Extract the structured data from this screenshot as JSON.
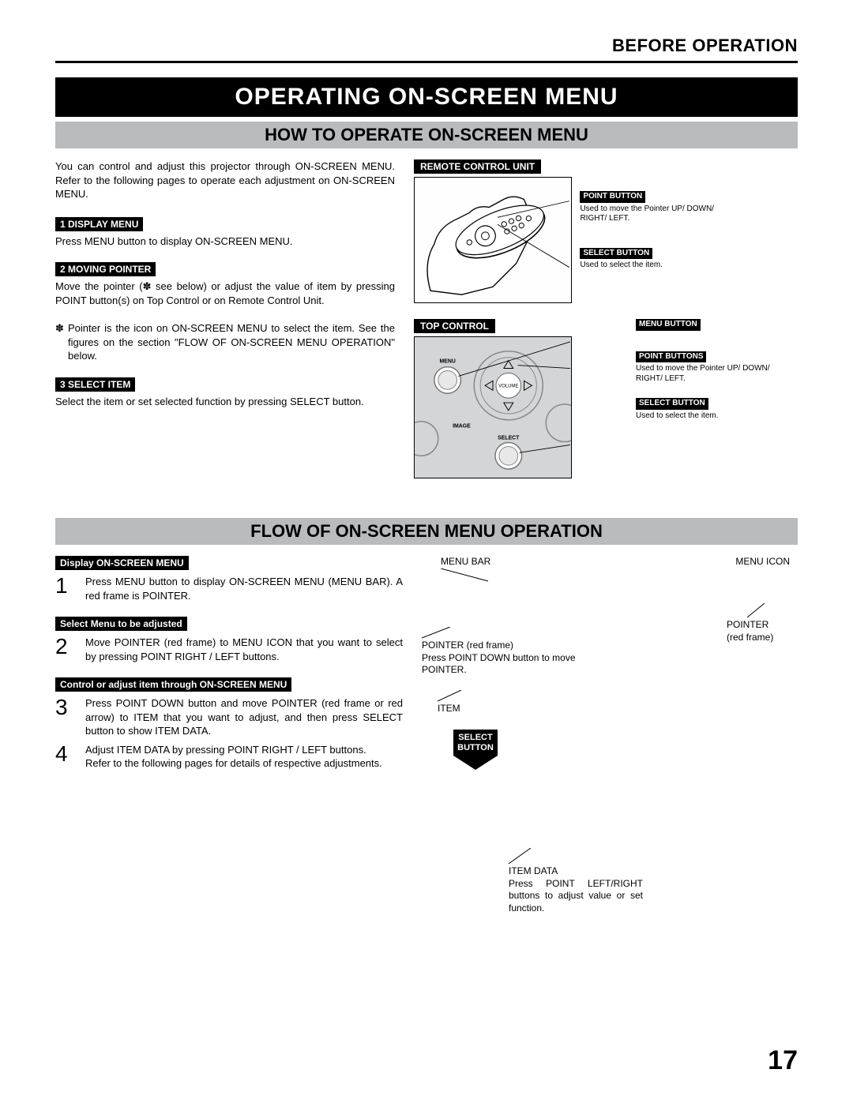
{
  "header": {
    "section": "BEFORE OPERATION"
  },
  "title": "OPERATING ON-SCREEN MENU",
  "section1": {
    "heading": "HOW TO OPERATE ON-SCREEN MENU",
    "intro": "You can control and adjust this projector through ON-SCREEN MENU.  Refer to the following pages to operate each adjustment on ON-SCREEN MENU.",
    "steps": [
      {
        "label": "1  DISPLAY MENU",
        "text": "Press MENU button to display ON-SCREEN MENU."
      },
      {
        "label": "2  MOVING POINTER",
        "text": "Move the pointer (✽ see below) or adjust the value of item by pressing POINT button(s) on Top Control or on Remote Control Unit."
      },
      {
        "label": "3  SELECT ITEM",
        "text": "Select the item or set selected function by pressing SELECT button."
      }
    ],
    "note": "Pointer is the icon on ON-SCREEN MENU to select the item. See the figures on the section \"FLOW OF ON-SCREEN MENU OPERATION\" below.",
    "note_marker": "✽",
    "diagrams": {
      "remote": {
        "title": "REMOTE CONTROL UNIT",
        "annotations": [
          {
            "title": "POINT BUTTON",
            "text": "Used to move the Pointer UP/ DOWN/ RIGHT/ LEFT."
          },
          {
            "title": "SELECT BUTTON",
            "text": "Used to select the item."
          }
        ]
      },
      "top": {
        "title": "TOP CONTROL",
        "labels": {
          "menu": "MENU",
          "volume": "VOLUME",
          "image": "IMAGE",
          "select": "SELECT"
        },
        "annotations": [
          {
            "title": "MENU BUTTON",
            "text": ""
          },
          {
            "title": "POINT BUTTONS",
            "text": "Used to move the Pointer UP/ DOWN/ RIGHT/ LEFT."
          },
          {
            "title": "SELECT BUTTON",
            "text": "Used to select the item."
          }
        ]
      }
    }
  },
  "section2": {
    "heading": "FLOW OF ON-SCREEN MENU OPERATION",
    "steps": [
      {
        "label": "Display ON-SCREEN MENU",
        "num": "1",
        "text": "Press MENU button to display ON-SCREEN MENU (MENU BAR).  A red frame is POINTER."
      },
      {
        "label": "Select Menu to be adjusted",
        "num": "2",
        "text": "Move POINTER (red frame) to MENU ICON that you want to select by pressing POINT RIGHT / LEFT buttons."
      },
      {
        "label": "Control or adjust item through ON-SCREEN MENU",
        "num": "3",
        "text": "Press POINT DOWN button and move POINTER (red frame or red arrow) to ITEM that you want to adjust, and then press SELECT button to show ITEM DATA."
      },
      {
        "label": "",
        "num": "4",
        "text": "Adjust ITEM DATA by pressing POINT RIGHT / LEFT buttons.\nRefer to the following pages for details of respective adjustments."
      }
    ],
    "annotations": {
      "menu_bar": "MENU BAR",
      "menu_icon": "MENU ICON",
      "pointer1": "POINTER (red frame)\nPress POINT DOWN button to move POINTER.",
      "pointer2": "POINTER\n(red frame)",
      "item": "ITEM",
      "select_button": "SELECT BUTTON",
      "item_data": "ITEM DATA\nPress POINT LEFT/RIGHT buttons to adjust value or set function."
    }
  },
  "page_number": "17",
  "colors": {
    "black": "#000000",
    "white": "#ffffff",
    "gray_band": "#b9bbbd",
    "panel_gray": "#d4d5d7"
  }
}
